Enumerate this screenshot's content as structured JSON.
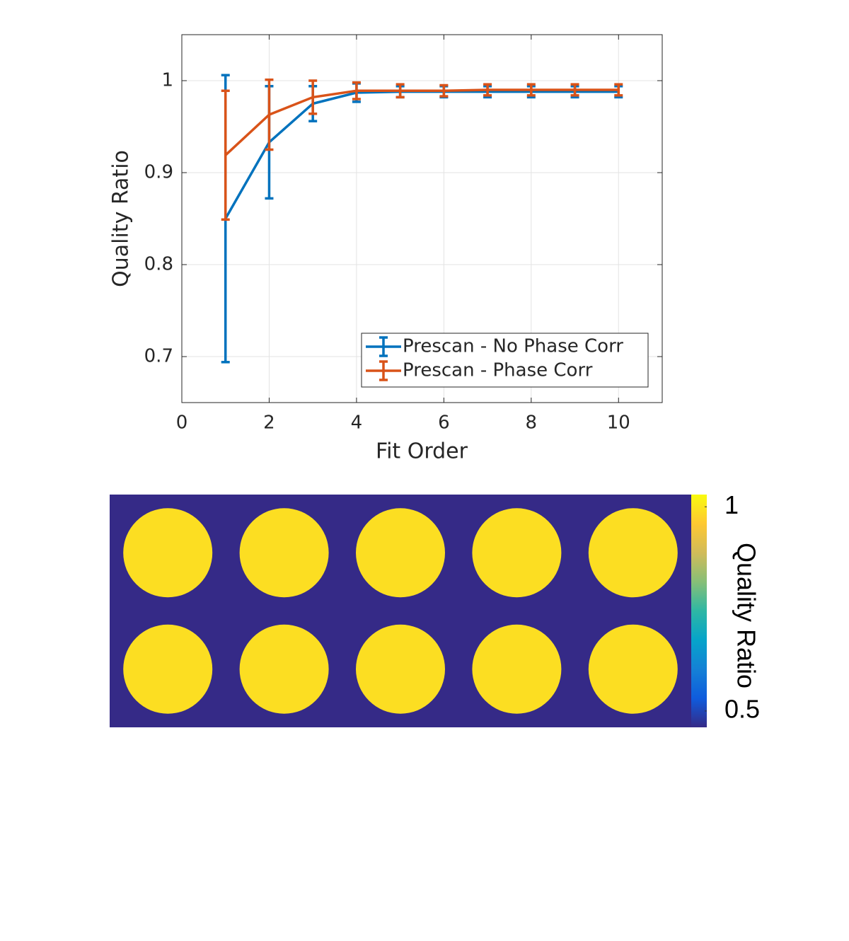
{
  "chart_data": [
    {
      "type": "line",
      "xlabel": "Fit Order",
      "ylabel": "Quality Ratio",
      "x": [
        1,
        2,
        3,
        4,
        5,
        6,
        7,
        8,
        9,
        10
      ],
      "series": [
        {
          "name": "Prescan - No Phase Corr",
          "color": "#0072bd",
          "values": [
            0.85,
            0.933,
            0.975,
            0.987,
            0.988,
            0.988,
            0.988,
            0.988,
            0.988,
            0.988
          ],
          "errors": [
            0.156,
            0.061,
            0.019,
            0.01,
            0.006,
            0.006,
            0.006,
            0.006,
            0.006,
            0.006
          ]
        },
        {
          "name": "Prescan - Phase Corr",
          "color": "#d95319",
          "values": [
            0.919,
            0.963,
            0.982,
            0.989,
            0.989,
            0.989,
            0.99,
            0.99,
            0.99,
            0.99
          ],
          "errors": [
            0.07,
            0.038,
            0.018,
            0.009,
            0.007,
            0.006,
            0.006,
            0.006,
            0.006,
            0.006
          ]
        }
      ],
      "xlim": [
        0,
        11
      ],
      "xticks": [
        0,
        2,
        4,
        6,
        8,
        10
      ],
      "ylim": [
        0.65,
        1.05
      ],
      "yticks": [
        0.7,
        0.8,
        0.9,
        1
      ],
      "grid": true,
      "legend": "southeast"
    },
    {
      "type": "image",
      "colorbar_label": "Quality Ratio",
      "values": [
        [
          0.99,
          0.99,
          0.99,
          0.99,
          0.99
        ],
        [
          0.99,
          0.99,
          0.99,
          0.99,
          0.99
        ]
      ],
      "clim": [
        0.46,
        1.03
      ],
      "colorbar_ticks": [
        0.5,
        1
      ],
      "colormap": [
        "#352a87",
        "#0f5cdd",
        "#1481d6",
        "#06a4ca",
        "#2eb7a4",
        "#87bf77",
        "#d1bb59",
        "#fec832",
        "#f9fb0e"
      ]
    }
  ]
}
